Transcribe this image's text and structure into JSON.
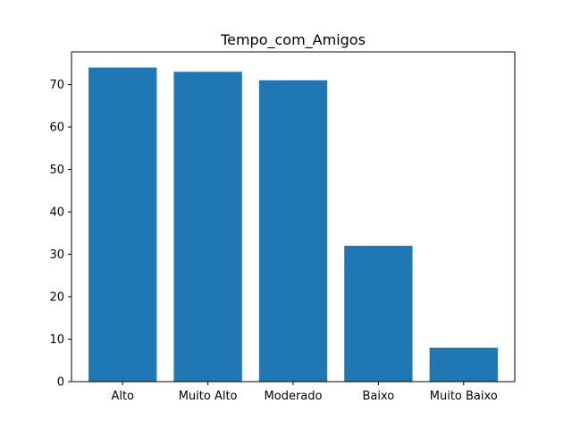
{
  "chart_data": {
    "type": "bar",
    "title": "Tempo_com_Amigos",
    "xlabel": "",
    "ylabel": "",
    "categories": [
      "Alto",
      "Muito Alto",
      "Moderado",
      "Baixo",
      "Muito Baixo"
    ],
    "values": [
      74,
      73,
      71,
      32,
      8
    ],
    "ylim": [
      0,
      77.7
    ],
    "yticks": [
      0,
      10,
      20,
      30,
      40,
      50,
      60,
      70
    ],
    "grid": false,
    "legend": "none",
    "colors": {
      "bar": "#1f77b4",
      "axis": "#000000"
    }
  }
}
